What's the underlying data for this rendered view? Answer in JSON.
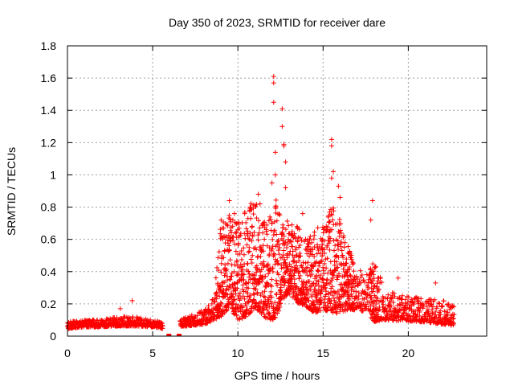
{
  "chart_data": {
    "type": "scatter",
    "title": "Day 350 of 2023, SRMTID for receiver dare",
    "xlabel": "GPS time / hours",
    "ylabel": "SRMTID / TECUs",
    "xlim": [
      0,
      24.6
    ],
    "ylim": [
      0,
      1.8
    ],
    "xticks": [
      0,
      5,
      10,
      15,
      20
    ],
    "xtick_labels": [
      "0",
      "5",
      "10",
      "15",
      "20"
    ],
    "yticks": [
      0,
      0.2,
      0.4,
      0.6,
      0.8,
      1,
      1.2,
      1.4,
      1.6,
      1.8
    ],
    "ytick_labels": [
      "0",
      "0.2",
      "0.4",
      "0.6",
      "0.8",
      "1",
      "1.2",
      "1.4",
      "1.6",
      "1.8"
    ],
    "grid": true,
    "marker": "+",
    "series": [
      {
        "name": "SRMTID",
        "color": "#ff0000",
        "envelope": {
          "x": [
            0,
            1,
            2,
            3,
            4,
            5,
            5.6,
            6,
            7,
            8,
            8.6,
            9,
            9.5,
            10,
            10.5,
            11,
            11.5,
            12,
            12.3,
            12.6,
            13,
            13.5,
            14,
            14.5,
            15,
            15.5,
            16,
            16.5,
            17,
            17.5,
            18,
            18.5,
            19,
            20,
            21,
            22,
            22.7
          ],
          "base": [
            0.06,
            0.07,
            0.07,
            0.08,
            0.08,
            0.07,
            0.06,
            0.06,
            0.08,
            0.1,
            0.14,
            0.3,
            0.35,
            0.28,
            0.32,
            0.38,
            0.3,
            0.3,
            0.35,
            0.38,
            0.4,
            0.35,
            0.32,
            0.3,
            0.32,
            0.35,
            0.32,
            0.28,
            0.24,
            0.22,
            0.2,
            0.17,
            0.15,
            0.14,
            0.13,
            0.12,
            0.1
          ],
          "spread": [
            0.03,
            0.03,
            0.03,
            0.04,
            0.04,
            0.03,
            0.03,
            0.03,
            0.04,
            0.06,
            0.1,
            0.4,
            0.38,
            0.4,
            0.45,
            0.45,
            0.4,
            0.45,
            0.5,
            0.35,
            0.3,
            0.32,
            0.3,
            0.35,
            0.35,
            0.45,
            0.4,
            0.25,
            0.18,
            0.15,
            0.25,
            0.15,
            0.12,
            0.1,
            0.1,
            0.1,
            0.08
          ]
        },
        "peaks": [
          {
            "x": 12.1,
            "y": 1.61
          },
          {
            "x": 12.1,
            "y": 1.57
          },
          {
            "x": 12.1,
            "y": 1.45
          },
          {
            "x": 12.6,
            "y": 1.41
          },
          {
            "x": 12.6,
            "y": 1.3
          },
          {
            "x": 12.7,
            "y": 1.19
          },
          {
            "x": 12.2,
            "y": 1.14
          },
          {
            "x": 12.7,
            "y": 1.18
          },
          {
            "x": 12.8,
            "y": 1.08
          },
          {
            "x": 12.2,
            "y": 1.0
          },
          {
            "x": 15.5,
            "y": 1.22
          },
          {
            "x": 15.5,
            "y": 1.18
          },
          {
            "x": 15.6,
            "y": 1.02
          },
          {
            "x": 15.5,
            "y": 0.98
          },
          {
            "x": 15.9,
            "y": 0.93
          },
          {
            "x": 11.2,
            "y": 0.88
          },
          {
            "x": 11.3,
            "y": 0.82
          },
          {
            "x": 9.5,
            "y": 0.84
          },
          {
            "x": 17.9,
            "y": 0.84
          },
          {
            "x": 16.0,
            "y": 0.86
          },
          {
            "x": 13.8,
            "y": 0.76
          },
          {
            "x": 12.0,
            "y": 0.95
          },
          {
            "x": 12.8,
            "y": 0.92
          },
          {
            "x": 17.8,
            "y": 0.72
          },
          {
            "x": 19.4,
            "y": 0.36
          },
          {
            "x": 21.6,
            "y": 0.33
          },
          {
            "x": 3.8,
            "y": 0.22
          },
          {
            "x": 3.1,
            "y": 0.17
          },
          {
            "x": 9.8,
            "y": 0.76
          }
        ],
        "isolated": [
          {
            "x": 5.95,
            "y": 0.0
          },
          {
            "x": 6.55,
            "y": 0.0
          }
        ]
      }
    ]
  }
}
